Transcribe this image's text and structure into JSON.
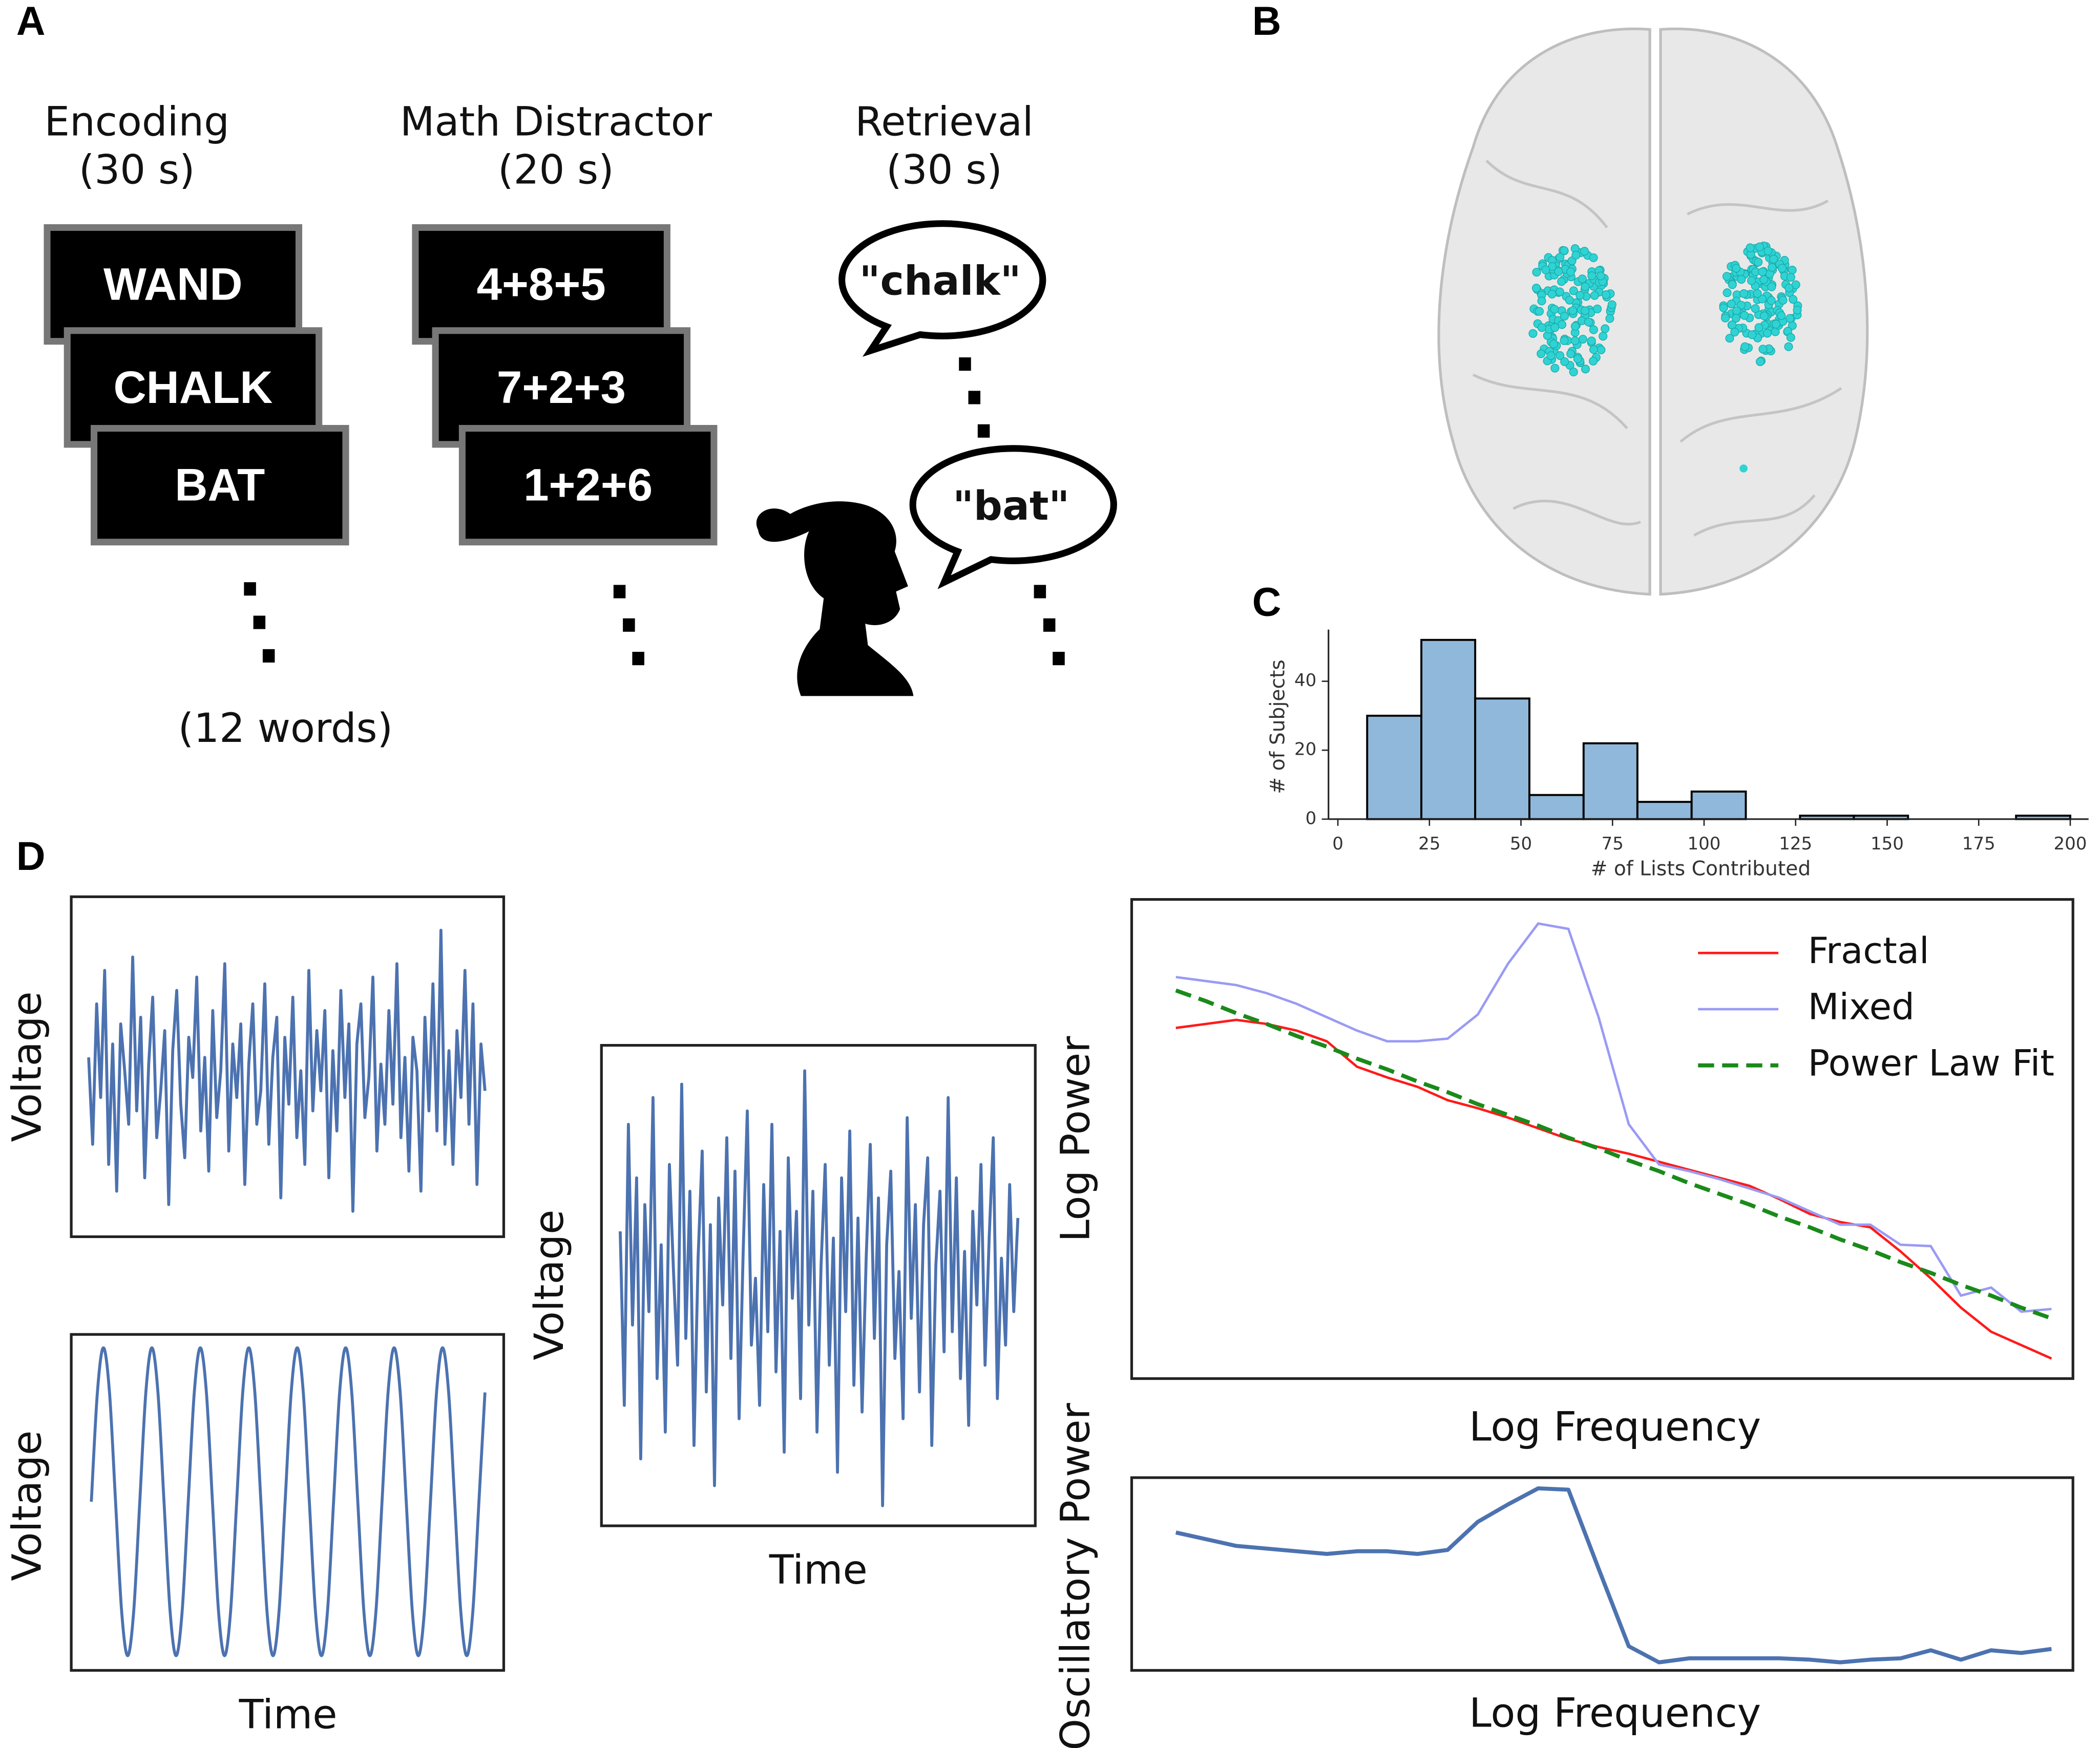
{
  "panel_labels": [
    "A",
    "B",
    "C",
    "D"
  ],
  "panel_a": {
    "phases": [
      {
        "title": "Encoding",
        "duration": "(30 s)",
        "cards": [
          "WAND",
          "CHALK",
          "BAT"
        ]
      },
      {
        "title": "Math Distractor",
        "duration": "(20 s)",
        "cards": [
          "4+8+5",
          "7+2+3",
          "1+2+6"
        ]
      },
      {
        "title": "Retrieval",
        "duration": "(30 s)",
        "speech": [
          "\"chalk\"",
          "\"bat\""
        ]
      }
    ],
    "note": "(12 words)"
  },
  "chart_data": [
    {
      "type": "histogram",
      "xlabel": "# of Lists Contributed",
      "ylabel": "# of Subjects",
      "bins": [
        8,
        22.8,
        37.5,
        52.3,
        67.1,
        81.8,
        96.6,
        111.4,
        126.2,
        140.9,
        155.7,
        170.5,
        185.2,
        200
      ],
      "values": [
        30,
        52,
        35,
        7,
        22,
        5,
        8,
        0,
        1,
        1,
        0,
        0,
        1
      ],
      "color": "#8fb8da",
      "xlim": [
        0,
        205
      ],
      "ylim": [
        0,
        55
      ],
      "xticks": [
        0,
        25,
        50,
        75,
        100,
        125,
        150,
        175,
        200
      ],
      "yticks": [
        0,
        20,
        40
      ]
    },
    {
      "type": "line",
      "ylabel": "Voltage",
      "color": "#4c72b0",
      "values": [
        20,
        -45,
        60,
        -10,
        85,
        -60,
        30,
        -80,
        45,
        10,
        -30,
        95,
        -20,
        50,
        -70,
        15,
        65,
        -40,
        -5,
        40,
        -90,
        25,
        70,
        -15,
        -55,
        35,
        5,
        80,
        -35,
        20,
        -65,
        55,
        -25,
        10,
        90,
        -50,
        30,
        -10,
        45,
        -75,
        15,
        60,
        -30,
        -5,
        75,
        -45,
        20,
        50,
        -85,
        35,
        -15,
        65,
        -40,
        10,
        -60,
        85,
        -20,
        40,
        -5,
        55,
        -70,
        25,
        -35,
        70,
        -10,
        45,
        -95,
        30,
        60,
        -25,
        5,
        80,
        -50,
        15,
        -30,
        55,
        -15,
        90,
        -40,
        20,
        -65,
        35,
        10,
        -80,
        50,
        -20,
        75,
        -35,
        115,
        -45,
        25,
        -60,
        40,
        -10,
        85,
        -30,
        60,
        -75,
        30,
        -5
      ]
    },
    {
      "type": "line",
      "ylabel": "Voltage",
      "xlabel": "Time",
      "color": "#4c72b0",
      "values": [
        0,
        0.71,
        1,
        0.71,
        0,
        -0.71,
        -1,
        -0.71,
        0,
        0.71,
        1,
        0.71,
        0,
        -0.71,
        -1,
        -0.71,
        0,
        0.71,
        1,
        0.71,
        0,
        -0.71,
        -1,
        -0.71,
        0,
        0.71,
        1,
        0.71,
        0,
        -0.71,
        -1,
        -0.71,
        0,
        0.71,
        1,
        0.71,
        0,
        -0.71,
        -1,
        -0.71,
        0,
        0.71,
        1,
        0.71,
        0,
        -0.71,
        -1,
        -0.71,
        0,
        0.71,
        1,
        0.71,
        0,
        -0.71,
        -1,
        -0.71,
        0,
        0.71,
        1,
        0.71,
        0,
        -0.71,
        -1,
        -0.71,
        0,
        0.71
      ]
    },
    {
      "type": "line",
      "ylabel": "Voltage",
      "xlabel": "Time",
      "color": "#4c72b0",
      "values": [
        40,
        -90,
        120,
        -30,
        80,
        -130,
        60,
        -20,
        140,
        -70,
        30,
        -110,
        90,
        10,
        -60,
        150,
        -40,
        70,
        -120,
        20,
        100,
        -80,
        45,
        -150,
        65,
        -15,
        110,
        -55,
        85,
        -100,
        25,
        130,
        -45,
        5,
        -90,
        75,
        -35,
        120,
        -65,
        40,
        -125,
        95,
        -10,
        55,
        -85,
        160,
        -30,
        70,
        -110,
        15,
        90,
        -60,
        35,
        -140,
        80,
        -20,
        115,
        -75,
        50,
        -95,
        20,
        105,
        -40,
        65,
        -165,
        30,
        85,
        -55,
        10,
        -100,
        125,
        -25,
        60,
        -80,
        45,
        95,
        -120,
        15,
        70,
        -50,
        140,
        -35,
        80,
        -70,
        25,
        -105,
        55,
        -15,
        90,
        -60,
        35,
        110,
        -85,
        20,
        -45,
        75,
        -20,
        50
      ]
    },
    {
      "type": "line",
      "xlabel": "Log Frequency",
      "ylabel": "Log Power",
      "legend": "upper right",
      "series": [
        {
          "name": "Fractal",
          "color": "#ff1a1a",
          "style": "solid",
          "values": [
            262,
            265,
            268,
            265,
            260,
            252,
            233,
            225,
            218,
            208,
            202,
            195,
            187,
            179,
            173,
            168,
            162,
            156,
            150,
            144,
            134,
            123,
            117,
            113,
            95,
            75,
            53,
            35,
            25,
            15
          ]
        },
        {
          "name": "Mixed",
          "color": "#9a9af5",
          "style": "solid",
          "values": [
            300,
            297,
            294,
            288,
            280,
            270,
            260,
            252,
            252,
            254,
            272,
            310,
            340,
            336,
            270,
            190,
            160,
            155,
            149,
            142,
            135,
            125,
            115,
            115,
            100,
            99,
            62,
            68,
            50,
            52
          ]
        },
        {
          "name": "Power Law Fit",
          "color": "#1a8a1a",
          "style": "dashed",
          "values": [
            290,
            282,
            273,
            265,
            256,
            248,
            239,
            231,
            222,
            214,
            205,
            197,
            189,
            180,
            172,
            163,
            155,
            146,
            138,
            130,
            121,
            113,
            104,
            96,
            87,
            79,
            70,
            62,
            53,
            45
          ]
        }
      ]
    },
    {
      "type": "line",
      "xlabel": "Log Frequency",
      "ylabel": "Oscillatory Power",
      "color": "#4c72b0",
      "values": [
        103,
        98,
        93,
        91,
        89,
        87,
        89,
        89,
        87,
        90,
        111,
        124,
        136,
        135,
        76,
        18,
        6,
        9,
        9,
        9,
        9,
        8,
        6,
        8,
        9,
        15,
        8,
        15,
        13,
        16
      ]
    }
  ]
}
